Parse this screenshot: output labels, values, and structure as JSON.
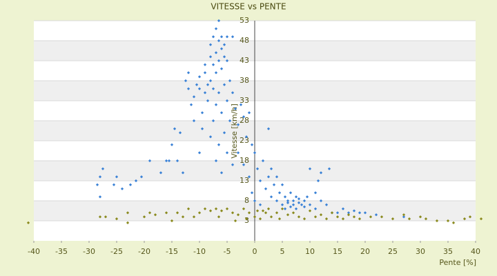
{
  "chart_data": {
    "type": "scatter",
    "title": "VITESSE vs PENTE",
    "x_label": "Pente [%]",
    "y_label": "Vitesse [km/h]",
    "xlim": [
      -40,
      40
    ],
    "xticks": [
      -40,
      -35,
      -30,
      -25,
      -20,
      -15,
      -10,
      -5,
      0,
      5,
      10,
      15,
      20,
      25,
      30,
      35,
      40
    ],
    "ylim": [
      -2,
      53
    ],
    "yticks": [
      53,
      48,
      43,
      38,
      33,
      28,
      23,
      18,
      13,
      8,
      3
    ],
    "grid": true,
    "series": [
      {
        "color": "#3b82d6",
        "x": [
          -28.5,
          -28,
          -28,
          -27.5,
          -25.5,
          -25,
          -24,
          -22.5,
          -21.5,
          -20.5,
          -19,
          -17,
          -16,
          -15.5,
          -15,
          -14.5,
          -14,
          -13.5,
          -13,
          -12.5,
          -12,
          -12,
          -11.5,
          -11,
          -11,
          -10.5,
          -10,
          -10,
          -10,
          -9.5,
          -9.5,
          -9,
          -9,
          -9,
          -8.5,
          -8.5,
          -8,
          -8,
          -8,
          -8,
          -7.5,
          -7.5,
          -7.5,
          -7.5,
          -7,
          -7,
          -7,
          -7,
          -7,
          -6.5,
          -6.5,
          -6.5,
          -6.5,
          -6.5,
          -6,
          -6,
          -6,
          -6,
          -6,
          -5.5,
          -5.5,
          -5.5,
          -5.5,
          -5,
          -5,
          -5,
          -5,
          -4.5,
          -4.5,
          -4,
          -4,
          -4,
          -3.5,
          -3,
          -3,
          -2.5,
          -2,
          -2,
          -1.5,
          -1,
          -1,
          -0.5,
          0,
          0.5,
          1,
          1.5,
          2,
          2.5,
          2.5,
          3,
          3,
          3.5,
          4,
          4,
          4.5,
          5,
          5,
          5.5,
          5.5,
          6,
          6,
          6.5,
          6.5,
          7,
          7,
          7.5,
          7.5,
          8,
          8,
          8.5,
          9,
          9,
          9.5,
          10,
          10,
          11,
          11,
          11.5,
          12,
          12,
          13,
          13.5,
          14,
          15,
          16,
          17,
          18,
          19,
          20,
          22,
          27,
          -0.5,
          0,
          1
        ],
        "y": [
          12,
          14,
          9,
          16,
          12,
          14,
          11,
          12,
          13,
          14,
          18,
          15,
          18,
          18,
          22,
          26,
          18,
          25,
          15,
          38,
          40,
          36,
          32,
          34,
          28,
          37,
          39,
          36,
          20,
          30,
          26,
          40,
          42,
          35,
          37,
          33,
          47,
          44,
          38,
          24,
          49,
          42,
          36,
          28,
          51,
          45,
          40,
          32,
          18,
          53,
          48,
          43,
          35,
          22,
          49,
          46,
          41,
          30,
          15,
          47,
          44,
          37,
          25,
          49,
          43,
          33,
          20,
          38,
          28,
          49,
          35,
          17,
          31,
          27,
          20,
          32,
          29,
          17,
          24,
          30,
          14,
          22,
          20,
          16,
          13,
          18,
          11,
          26,
          14,
          16,
          9,
          12,
          8,
          14,
          10,
          7,
          12,
          9,
          6,
          8,
          7.5,
          10,
          6.5,
          8,
          7,
          9,
          6,
          7.5,
          8.5,
          7,
          8,
          6.5,
          9,
          7,
          16,
          10,
          6,
          13,
          15,
          8,
          7,
          16,
          5,
          5,
          6,
          5,
          5.5,
          5,
          5,
          4.5,
          4,
          10,
          8,
          7
        ]
      },
      {
        "color": "#8a8a1e",
        "x": [
          -41,
          -28,
          -27,
          -25,
          -23,
          -23,
          -20,
          -19,
          -18,
          -15,
          -14,
          -12,
          -11,
          -10,
          -9,
          -8,
          -7,
          -6,
          -5,
          -4,
          -3,
          -2,
          -1,
          0,
          0.5,
          1,
          2,
          2.5,
          3,
          4,
          4.5,
          5,
          6,
          7,
          8,
          9,
          10,
          11,
          12,
          13,
          14,
          15,
          16,
          17,
          18,
          19,
          21,
          23,
          25,
          27,
          28,
          30,
          31,
          33,
          35,
          36,
          38,
          39,
          41,
          -16,
          -13,
          -6.5,
          -3.5,
          -1.5,
          1.5
        ],
        "y": [
          2.5,
          4,
          4,
          3.5,
          5,
          2.5,
          4,
          5,
          4.5,
          3,
          5,
          6,
          4,
          5,
          6,
          5.5,
          6,
          5.5,
          6,
          5,
          4.5,
          6,
          5,
          4,
          5.5,
          3.5,
          5,
          6,
          4,
          5,
          3.5,
          6,
          4.5,
          5,
          4,
          3.5,
          5.5,
          4,
          4.5,
          3.5,
          5,
          4,
          3.5,
          4.5,
          4,
          3.5,
          4,
          4,
          3.5,
          4.5,
          3.5,
          4,
          3.5,
          3,
          3,
          2.5,
          3.5,
          4,
          3.5,
          5,
          4,
          4,
          3,
          3.5,
          5.5
        ]
      }
    ]
  }
}
